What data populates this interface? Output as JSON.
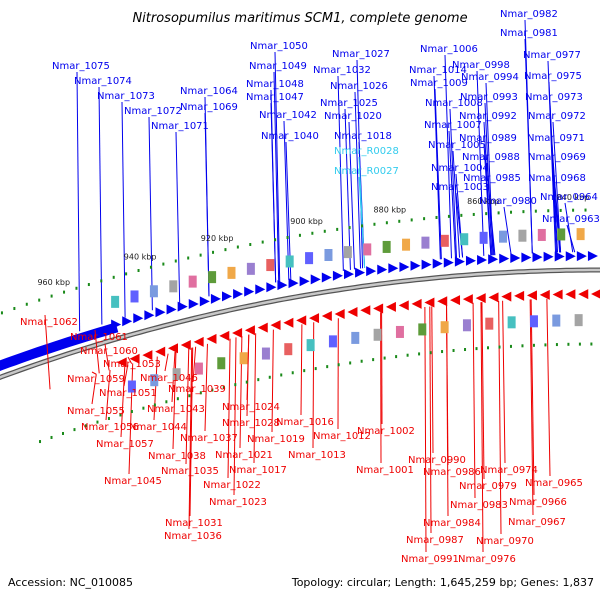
{
  "title": "Nitrosopumilus maritimus SCM1, complete genome",
  "footer": {
    "accession": "Accession: NC_010085",
    "stats": "Topology: circular; Length: 1,645,259 bp; Genes: 1,837"
  },
  "colors": {
    "forward_gene": "#0000ee",
    "reverse_gene": "#ee0000",
    "rna_gene": "#33ccee",
    "dot_marks": "#1a8a1a",
    "backbone": "#888888"
  },
  "scale_marks": [
    "960 kbp",
    "940 kbp",
    "920 kbp",
    "900 kbp",
    "880 kbp",
    "860 kbp",
    "840 kbp"
  ],
  "top_labels": [
    "Nmar_1075",
    "Nmar_1074",
    "Nmar_1073",
    "Nmar_1072",
    "Nmar_1071",
    "Nmar_1064",
    "Nmar_1069",
    "Nmar_1050",
    "Nmar_1049",
    "Nmar_1048",
    "Nmar_1047",
    "Nmar_1042",
    "Nmar_1040",
    "Nmar_1027",
    "Nmar_1032",
    "Nmar_1026",
    "Nmar_1025",
    "Nmar_1020",
    "Nmar_1018",
    "Nmar_R0028",
    "Nmar_R0027",
    "Nmar_1006",
    "Nmar_1014",
    "Nmar_1009",
    "Nmar_1008",
    "Nmar_1007",
    "Nmar_1005",
    "Nmar_1004",
    "Nmar_1003",
    "Nmar_0982",
    "Nmar_0981",
    "Nmar_0998",
    "Nmar_0977",
    "Nmar_0994",
    "Nmar_0975",
    "Nmar_0993",
    "Nmar_0973",
    "Nmar_0992",
    "Nmar_0972",
    "Nmar_0989",
    "Nmar_0971",
    "Nmar_0988",
    "Nmar_0969",
    "Nmar_0985",
    "Nmar_0968",
    "Nmar_0980",
    "Nmar_0964",
    "Nmar_0963"
  ],
  "bottom_labels": [
    "Nmar_1062",
    "Nmar_1061",
    "Nmar_1060",
    "Nmar_1053",
    "Nmar_1059",
    "Nmar_1046",
    "Nmar_1051",
    "Nmar_1039",
    "Nmar_1055",
    "Nmar_1043",
    "Nmar_1056",
    "Nmar_1044",
    "Nmar_1024",
    "Nmar_1057",
    "Nmar_1028",
    "Nmar_1016",
    "Nmar_1037",
    "Nmar_1019",
    "Nmar_1012",
    "Nmar_1002",
    "Nmar_1038",
    "Nmar_1021",
    "Nmar_1013",
    "Nmar_1035",
    "Nmar_1017",
    "Nmar_1001",
    "Nmar_0990",
    "Nmar_0986",
    "Nmar_0974",
    "Nmar_1045",
    "Nmar_1022",
    "Nmar_0979",
    "Nmar_0965",
    "Nmar_1023",
    "Nmar_0983",
    "Nmar_0966",
    "Nmar_1031",
    "Nmar_0984",
    "Nmar_0967",
    "Nmar_1036",
    "Nmar_0987",
    "Nmar_0970",
    "Nmar_0991",
    "Nmar_0976"
  ]
}
